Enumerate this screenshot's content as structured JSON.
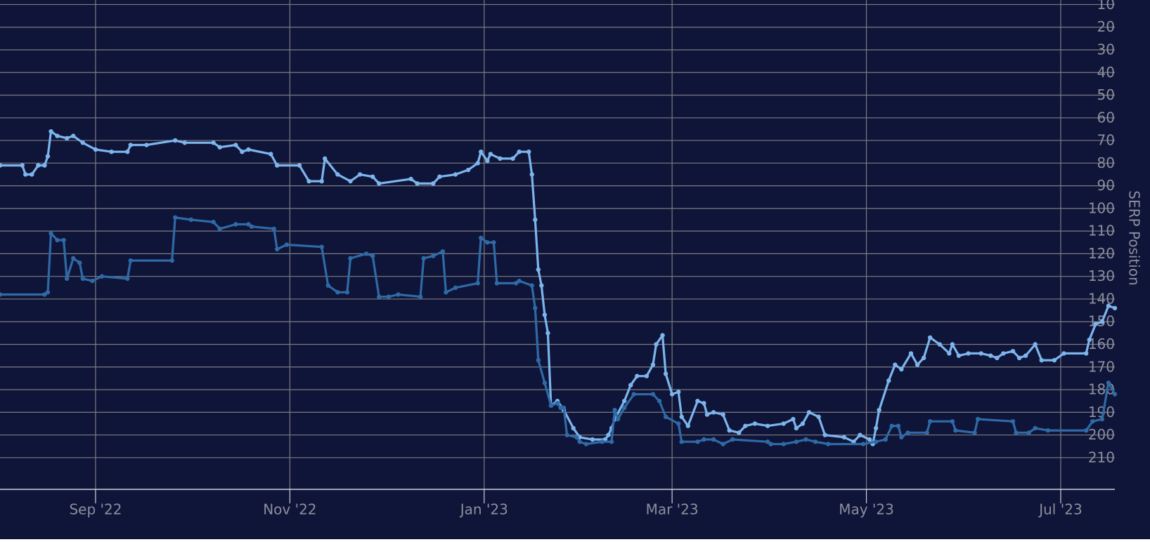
{
  "chart_data": {
    "type": "line",
    "y_axis_label": "SERP Position",
    "y_axis_side": "right",
    "y_reversed": true,
    "background": "#0f1439",
    "grid": true,
    "xlim": [
      0,
      350
    ],
    "xticks": [
      {
        "value": 30,
        "label": "Sep '22"
      },
      {
        "value": 91,
        "label": "Nov '22"
      },
      {
        "value": 152,
        "label": "Jan '23"
      },
      {
        "value": 211,
        "label": "Mar '23"
      },
      {
        "value": 272,
        "label": "May '23"
      },
      {
        "value": 333,
        "label": "Jul '23"
      }
    ],
    "ylim": [
      8,
      224
    ],
    "yticks": [
      10,
      20,
      30,
      40,
      50,
      60,
      70,
      80,
      90,
      100,
      110,
      120,
      130,
      140,
      150,
      160,
      170,
      180,
      190,
      200,
      210
    ],
    "series": [
      {
        "color": "#7cb5ec",
        "x": [
          0,
          7,
          8,
          10,
          12,
          14,
          15,
          16,
          18,
          21,
          23,
          26,
          30,
          35,
          40,
          41,
          46,
          55,
          58,
          67,
          69,
          74,
          76,
          78,
          85,
          87,
          94,
          97,
          101,
          102,
          106,
          110,
          113,
          117,
          119,
          129,
          131,
          136,
          138,
          143,
          147,
          150,
          151,
          153,
          154,
          157,
          161,
          163,
          166,
          167,
          168,
          169,
          170,
          171,
          172,
          173,
          175,
          177,
          180,
          182,
          186,
          190,
          191,
          192,
          193,
          196,
          198,
          200,
          203,
          205,
          206,
          208,
          209,
          211,
          213,
          214,
          216,
          219,
          221,
          222,
          224,
          227,
          229,
          232,
          234,
          237,
          241,
          246,
          249,
          250,
          252,
          254,
          257,
          259,
          265,
          268,
          270,
          273,
          274,
          275,
          276,
          279,
          281,
          283,
          286,
          288,
          290,
          292,
          295,
          298,
          299,
          301,
          304,
          308,
          311,
          313,
          315,
          318,
          320,
          322,
          325,
          327,
          331,
          334,
          341,
          342,
          344,
          346,
          348,
          350
        ],
        "values": [
          81,
          81,
          85,
          85,
          81,
          81,
          77,
          66,
          68,
          69,
          68,
          71,
          74,
          75,
          75,
          72,
          72,
          70,
          71,
          71,
          73,
          72,
          75,
          74,
          76,
          81,
          81,
          88,
          88,
          78,
          85,
          88,
          85,
          86,
          89,
          87,
          89,
          89,
          86,
          85,
          83,
          80,
          75,
          79,
          76,
          78,
          78,
          75,
          75,
          85,
          105,
          127,
          134,
          147,
          155,
          187,
          185,
          189,
          197,
          201,
          202,
          202,
          200,
          197,
          193,
          185,
          178,
          174,
          174,
          169,
          160,
          156,
          173,
          182,
          181,
          192,
          196,
          185,
          186,
          191,
          190,
          191,
          198,
          199,
          196,
          195,
          196,
          195,
          193,
          197,
          195,
          190,
          192,
          200,
          201,
          203,
          200,
          202,
          204,
          197,
          189,
          176,
          169,
          171,
          164,
          169,
          166,
          157,
          160,
          164,
          160,
          165,
          164,
          164,
          165,
          166,
          164,
          163,
          166,
          165,
          160,
          167,
          167,
          164,
          164,
          158,
          151,
          150,
          143,
          144
        ]
      },
      {
        "color": "#2f6aa6",
        "x": [
          0,
          14,
          15,
          16,
          18,
          20,
          21,
          23,
          25,
          26,
          29,
          32,
          40,
          41,
          54,
          55,
          60,
          67,
          69,
          74,
          78,
          79,
          86,
          87,
          90,
          101,
          103,
          106,
          109,
          110,
          115,
          117,
          119,
          122,
          125,
          132,
          133,
          136,
          139,
          140,
          143,
          150,
          151,
          153,
          155,
          156,
          162,
          163,
          167,
          168,
          169,
          171,
          173,
          175,
          176,
          177,
          178,
          181,
          182,
          184,
          189,
          192,
          193,
          194,
          196,
          199,
          205,
          207,
          209,
          213,
          214,
          219,
          221,
          224,
          227,
          230,
          241,
          242,
          246,
          250,
          253,
          256,
          260,
          271,
          275,
          278,
          280,
          282,
          283,
          285,
          291,
          292,
          299,
          300,
          306,
          307,
          318,
          319,
          323,
          325,
          329,
          341,
          343,
          346,
          348,
          350
        ],
        "values": [
          138,
          138,
          137,
          111,
          114,
          114,
          131,
          122,
          124,
          131,
          132,
          130,
          131,
          123,
          123,
          104,
          105,
          106,
          109,
          107,
          107,
          108,
          109,
          118,
          116,
          117,
          134,
          137,
          137,
          122,
          120,
          121,
          139,
          139,
          138,
          139,
          122,
          121,
          119,
          137,
          135,
          133,
          113,
          115,
          115,
          133,
          133,
          132,
          134,
          144,
          167,
          177,
          187,
          186,
          188,
          188,
          200,
          201,
          203,
          204,
          203,
          203,
          189,
          193,
          188,
          182,
          182,
          185,
          192,
          195,
          203,
          203,
          202,
          202,
          204,
          202,
          203,
          204,
          204,
          203,
          202,
          203,
          204,
          204,
          203,
          202,
          196,
          196,
          201,
          199,
          199,
          194,
          194,
          198,
          199,
          193,
          194,
          199,
          199,
          197,
          198,
          198,
          194,
          193,
          177,
          182
        ]
      }
    ]
  }
}
